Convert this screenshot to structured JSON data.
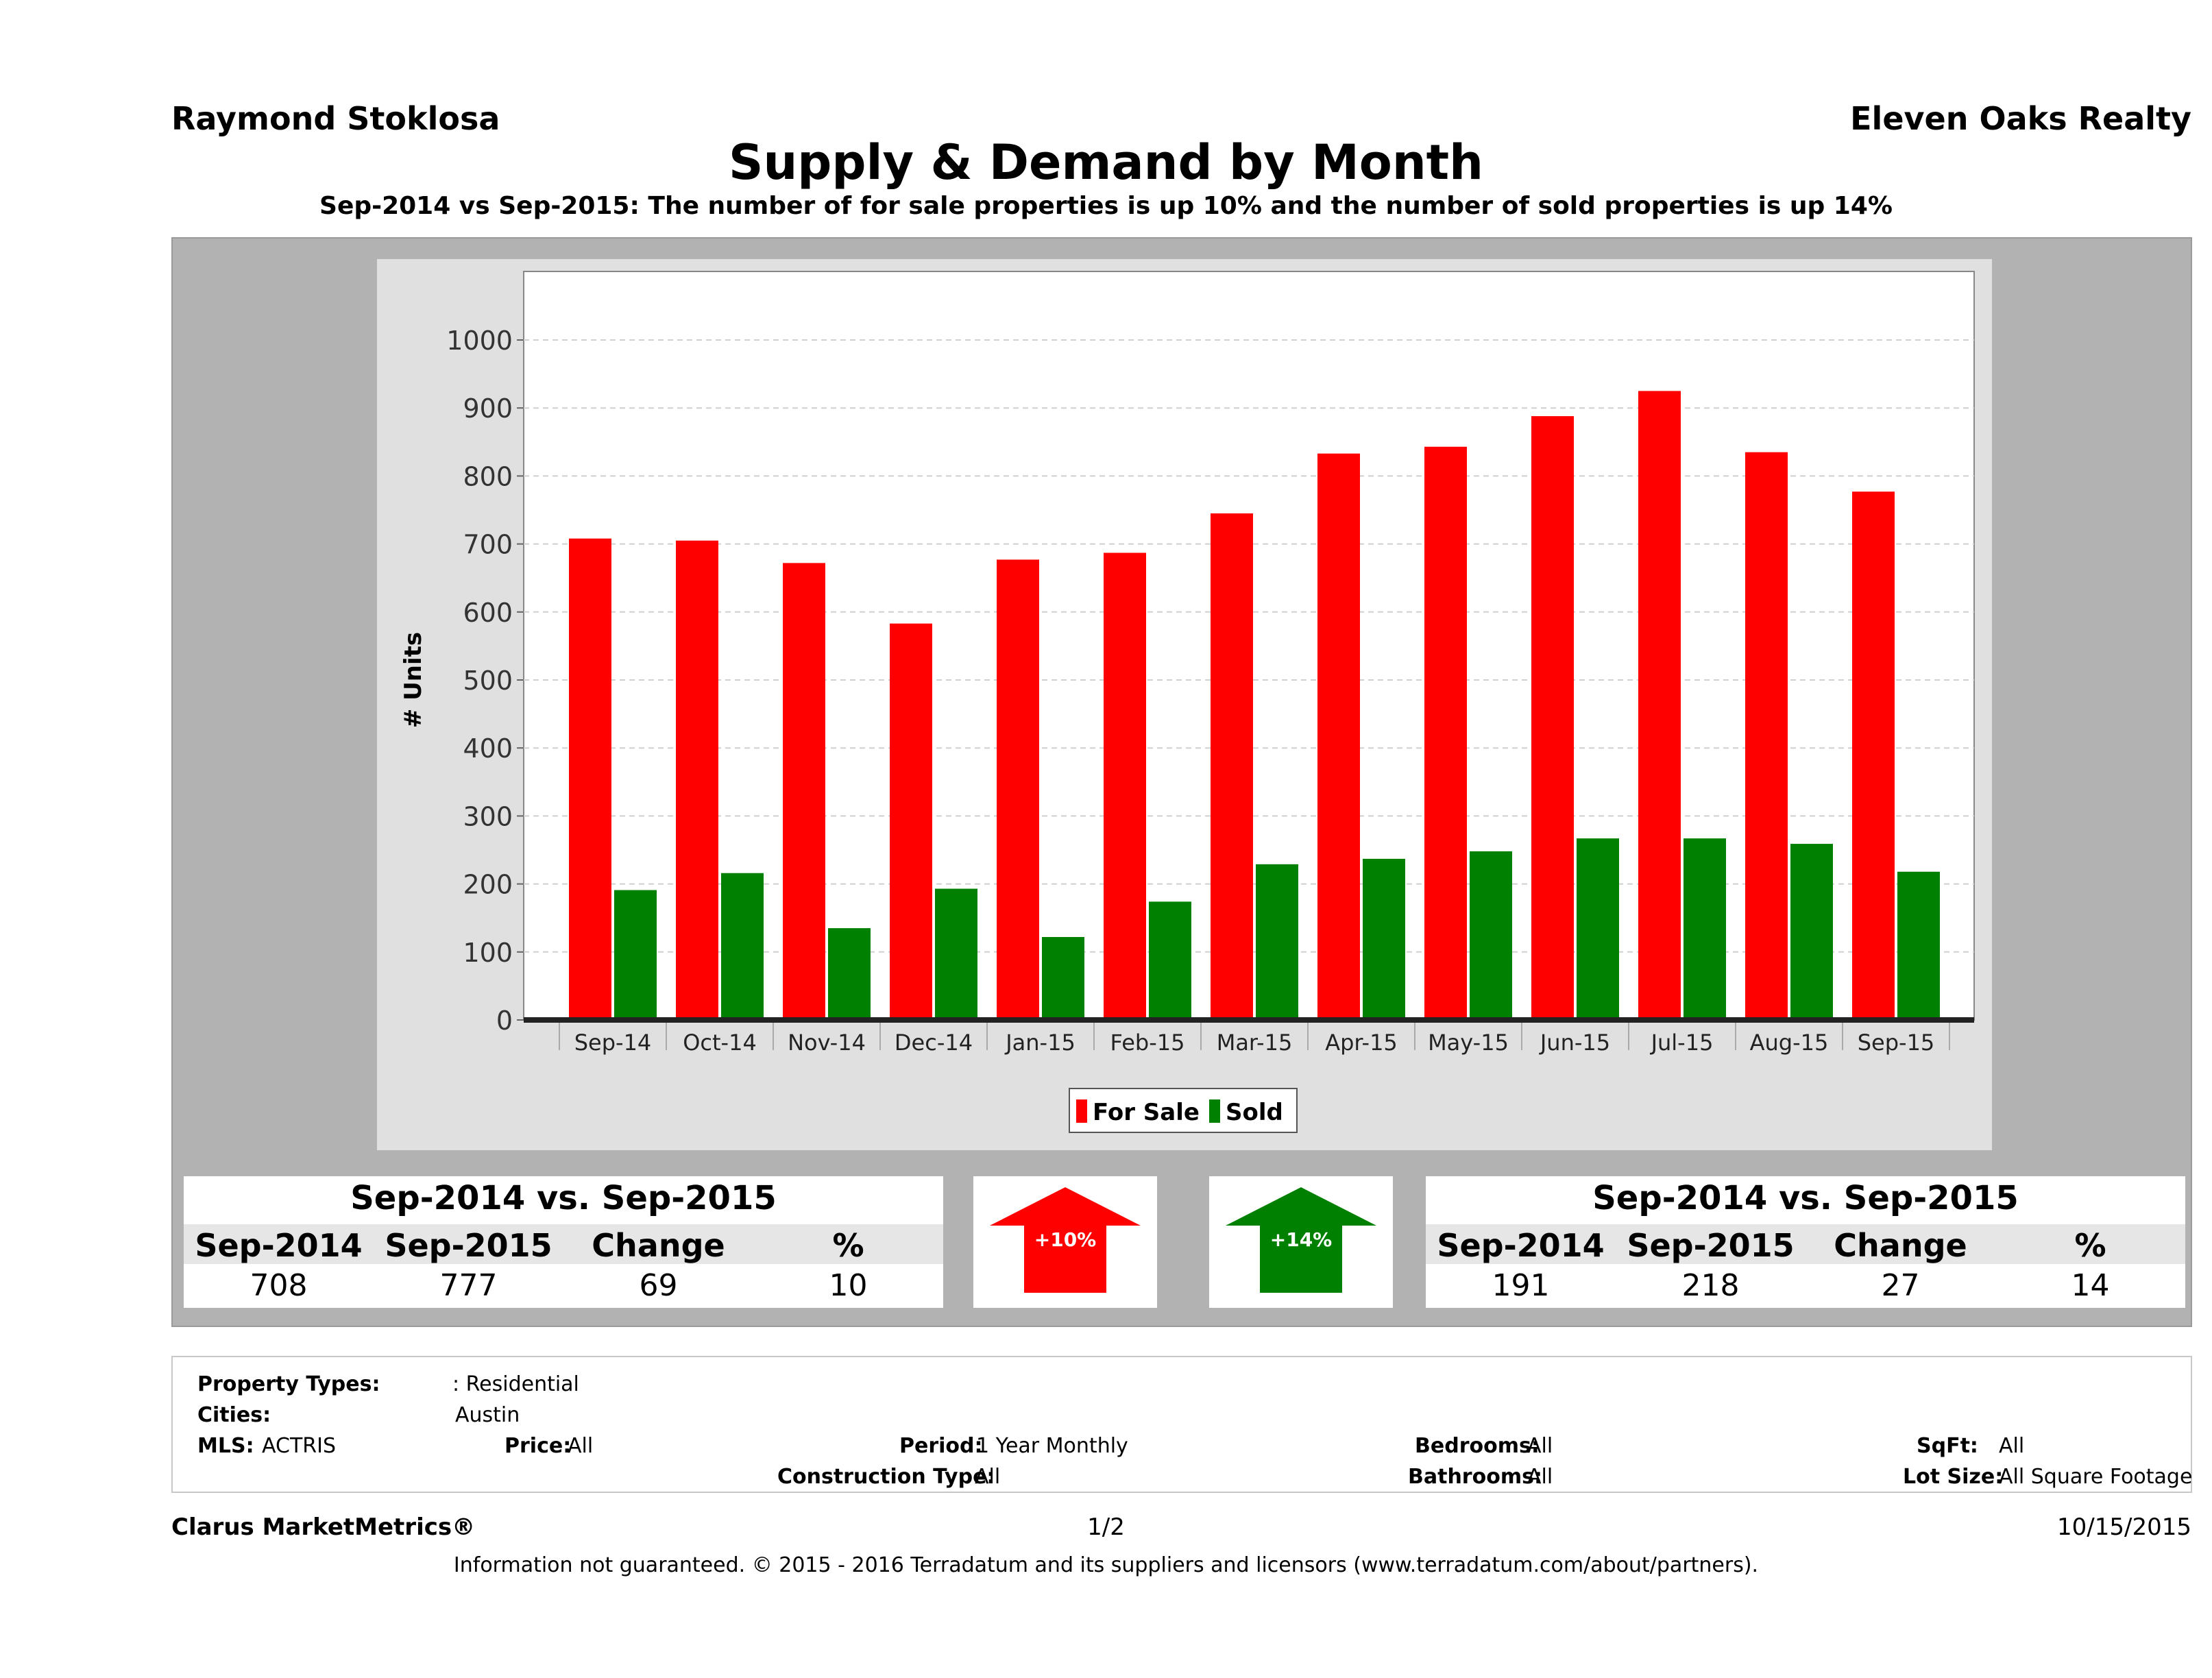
{
  "header": {
    "agent": "Raymond Stoklosa",
    "brokerage": "Eleven Oaks Realty",
    "title": "Supply & Demand by Month",
    "subtitle": "Sep-2014 vs Sep-2015: The number of for sale properties is up 10% and the number of sold properties is up 14%"
  },
  "colors": {
    "for_sale": "#ff0000",
    "sold": "#008000",
    "panel": "#b2b2b2",
    "plot_bg": "#ffffff"
  },
  "chart_data": {
    "type": "bar",
    "ylabel": "# Units",
    "xlabel": "",
    "ylim": [
      0,
      1000
    ],
    "yticks": [
      0,
      100,
      200,
      300,
      400,
      500,
      600,
      700,
      800,
      900,
      1000
    ],
    "grid": true,
    "legend_position": "bottom",
    "categories": [
      "Sep-14",
      "Oct-14",
      "Nov-14",
      "Dec-14",
      "Jan-15",
      "Feb-15",
      "Mar-15",
      "Apr-15",
      "May-15",
      "Jun-15",
      "Jul-15",
      "Aug-15",
      "Sep-15"
    ],
    "series": [
      {
        "name": "For Sale",
        "color": "#ff0000",
        "values": [
          708,
          705,
          672,
          583,
          677,
          687,
          745,
          833,
          843,
          888,
          925,
          835,
          777
        ]
      },
      {
        "name": "Sold",
        "color": "#008000",
        "values": [
          191,
          216,
          135,
          193,
          122,
          174,
          229,
          237,
          248,
          267,
          267,
          259,
          218
        ]
      }
    ]
  },
  "for_sale_table": {
    "title": "Sep-2014 vs. Sep-2015",
    "headers": [
      "Sep-2014",
      "Sep-2015",
      "Change",
      "%"
    ],
    "values": [
      "708",
      "777",
      "69",
      "10"
    ]
  },
  "sold_table": {
    "title": "Sep-2014 vs. Sep-2015",
    "headers": [
      "Sep-2014",
      "Sep-2015",
      "Change",
      "%"
    ],
    "values": [
      "191",
      "218",
      "27",
      "14"
    ]
  },
  "indicators": {
    "for_sale": "+10%",
    "sold": "+14%"
  },
  "filters": {
    "property_types_label": "Property Types:",
    "property_types_value": ": Residential",
    "cities_label": "Cities:",
    "cities_value": "Austin",
    "mls_label": "MLS:",
    "mls_value": "ACTRIS",
    "price_label": "Price:",
    "price_value": "All",
    "period_label": "Period:",
    "period_value": "1 Year Monthly",
    "construction_label": "Construction Type:",
    "construction_value": "All",
    "bedrooms_label": "Bedrooms:",
    "bedrooms_value": "All",
    "bathrooms_label": "Bathrooms:",
    "bathrooms_value": "All",
    "sqft_label": "SqFt:",
    "sqft_value": "All",
    "lotsize_label": "Lot Size:",
    "lotsize_value": "All Square Footage"
  },
  "footer": {
    "brand": "Clarus MarketMetrics®",
    "page": "1/2",
    "date": "10/15/2015",
    "disclaimer": "Information not guaranteed. © 2015 - 2016 Terradatum and its suppliers and licensors (www.terradatum.com/about/partners)."
  }
}
